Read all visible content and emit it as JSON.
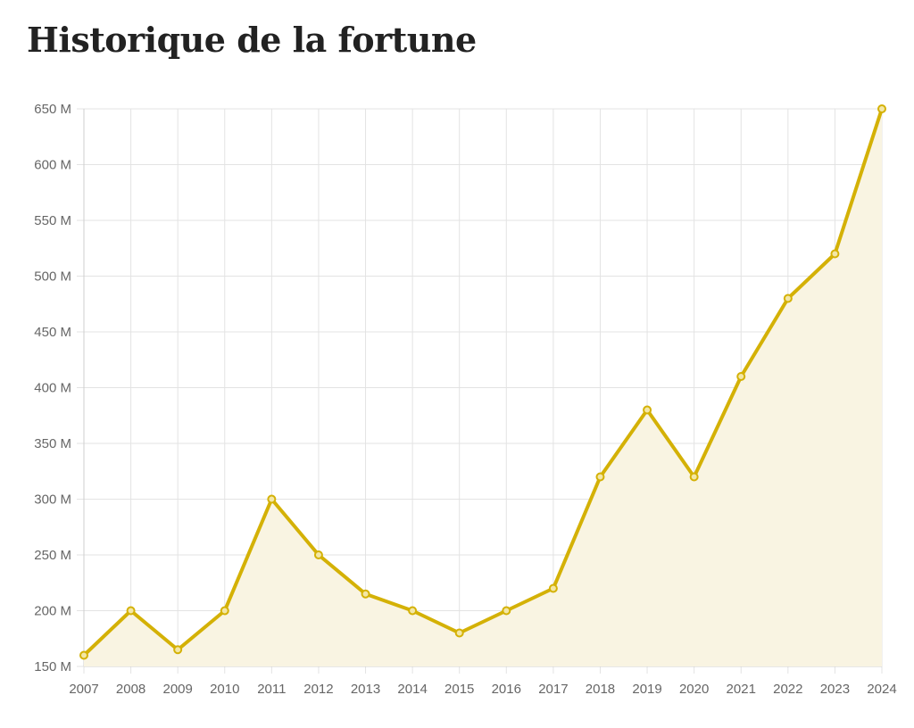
{
  "title": "Historique de la fortune",
  "colors": {
    "line": "#d4b106",
    "area": "#f9f4e2",
    "grid": "#e3e3e3",
    "tick_text": "#666666",
    "title": "#222222"
  },
  "chart_data": {
    "type": "area",
    "title": "Historique de la fortune",
    "xlabel": "",
    "ylabel": "",
    "x": [
      "2007",
      "2008",
      "2009",
      "2010",
      "2011",
      "2012",
      "2013",
      "2014",
      "2015",
      "2016",
      "2017",
      "2018",
      "2019",
      "2020",
      "2021",
      "2022",
      "2023",
      "2024"
    ],
    "series": [
      {
        "values": [
          160,
          200,
          165,
          200,
          300,
          250,
          215,
          200,
          180,
          200,
          220,
          320,
          380,
          320,
          410,
          480,
          520,
          650
        ]
      }
    ],
    "unit": "M",
    "ylim": [
      150,
      650
    ],
    "yticks": [
      150,
      200,
      250,
      300,
      350,
      400,
      450,
      500,
      550,
      600,
      650
    ],
    "ytick_labels": [
      "150 M",
      "200 M",
      "250 M",
      "300 M",
      "350 M",
      "400 M",
      "450 M",
      "500 M",
      "550 M",
      "600 M",
      "650 M"
    ],
    "grid": true,
    "legend": "none"
  }
}
